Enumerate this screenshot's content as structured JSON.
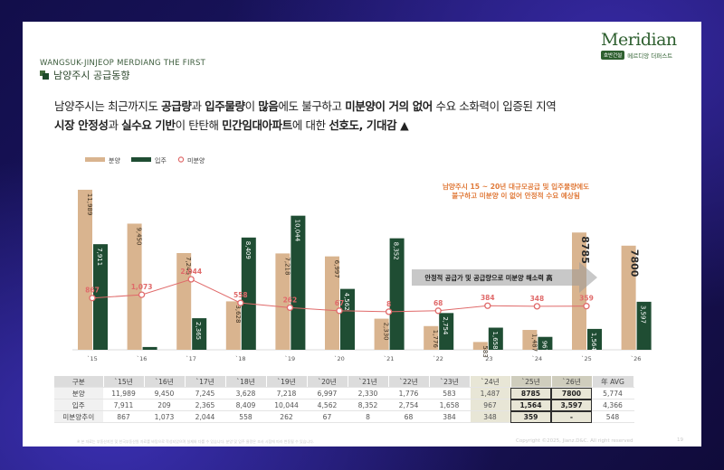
{
  "brand": {
    "subtitle": "WANGSUK-JINJEOP MERDIANG THE FIRST",
    "section_title": "남양주시 공급동향",
    "logo": "Meridian",
    "logo_badge": "호반건설",
    "logo_sub": "메르디앙 더퍼스트"
  },
  "headline": {
    "l1_a": "남양주시는 최근까지도 ",
    "l1_b": "공급량",
    "l1_c": "과 ",
    "l1_d": "입주물량",
    "l1_e": "이 ",
    "l1_f": "많음",
    "l1_g": "에도 불구하고 ",
    "l1_h": "미분양이 거의 없어",
    "l1_i": " 수요 소화력이 입증된 지역",
    "l2_a": "시장 안정성",
    "l2_b": "과 ",
    "l2_c": "실수요 기반",
    "l2_d": "이 탄탄해 ",
    "l2_e": "민간임대아파트",
    "l2_f": "에 대한 ",
    "l2_g": "선호도, 기대감",
    "l2_h": " ▲"
  },
  "chart_data": {
    "type": "bar",
    "categories": [
      "`15",
      "`16",
      "`17",
      "`18",
      "`19",
      "`20",
      "`21",
      "`22",
      "`23",
      "`24",
      "`25",
      "`26"
    ],
    "series": [
      {
        "name": "분양",
        "values": [
          11989,
          9450,
          7245,
          3628,
          7218,
          6997,
          2330,
          1776,
          583,
          1487,
          8785,
          7800
        ],
        "color": "#d9b48f"
      },
      {
        "name": "입주",
        "values": [
          7911,
          209,
          2365,
          8409,
          10044,
          4562,
          8352,
          2754,
          1658,
          967,
          1564,
          3597
        ],
        "color": "#1f4d33"
      },
      {
        "name": "미분양",
        "values": [
          867,
          1073,
          2044,
          558,
          262,
          67,
          8,
          68,
          384,
          348,
          359,
          null
        ],
        "color": "#e06a6a",
        "kind": "line"
      }
    ],
    "bar_labels_supply": [
      "11,989",
      "9,450",
      "7,245",
      "3,628",
      "7,218",
      "6,997",
      "2,330",
      "1,776",
      "583",
      "1,487",
      "8785",
      "7800"
    ],
    "bar_labels_move": [
      "7,911",
      "209",
      "2,365",
      "8,409",
      "10,044",
      "4,562",
      "8,352",
      "2,754",
      "1,658",
      "967",
      "1,564",
      "3,597"
    ],
    "line_labels": [
      "867",
      "1,073",
      "2,044",
      "558",
      "262",
      "67",
      "8",
      "68",
      "384",
      "348",
      "359",
      ""
    ],
    "ylim": [
      0,
      13000
    ],
    "annotation_title": "남양주시 15 ~ 20년 대규모공급 및 입주물량에도",
    "annotation_sub": "불구하고 미분양 이 없어 안정적 수요 예상됨",
    "arrow_text": "안정적 공급가 및 공급량으로 미분양 해소력 高",
    "legend_position": "top-left"
  },
  "table": {
    "header": [
      "구분",
      "`15년",
      "`16년",
      "`17년",
      "`18년",
      "`19년",
      "`20년",
      "`21년",
      "`22년",
      "`23년",
      "`24년",
      "`25년",
      "`26년",
      "年 AVG"
    ],
    "rows": [
      [
        "분양",
        "11,989",
        "9,450",
        "7,245",
        "3,628",
        "7,218",
        "6,997",
        "2,330",
        "1,776",
        "583",
        "1,487",
        "8785",
        "7800",
        "5,774"
      ],
      [
        "입주",
        "7,911",
        "209",
        "2,365",
        "8,409",
        "10,044",
        "4,562",
        "8,352",
        "2,754",
        "1,658",
        "967",
        "1,564",
        "3,597",
        "4,366"
      ],
      [
        "미분양추이",
        "867",
        "1,073",
        "2,044",
        "558",
        "262",
        "67",
        "8",
        "68",
        "384",
        "348",
        "359",
        "-",
        "548"
      ]
    ]
  },
  "footer": {
    "note": "※ 본 자료는 부동산지인 및 한국부동산원 자료를 바탕으로 작성되었으며 실제와 다를 수 있습니다. 분양 및 입주 물량은 조사 시점에 따라 변동될 수 있습니다.",
    "copyright": "Copyright ©2025, Jianz.D&C. All right reserved",
    "page": "19"
  }
}
